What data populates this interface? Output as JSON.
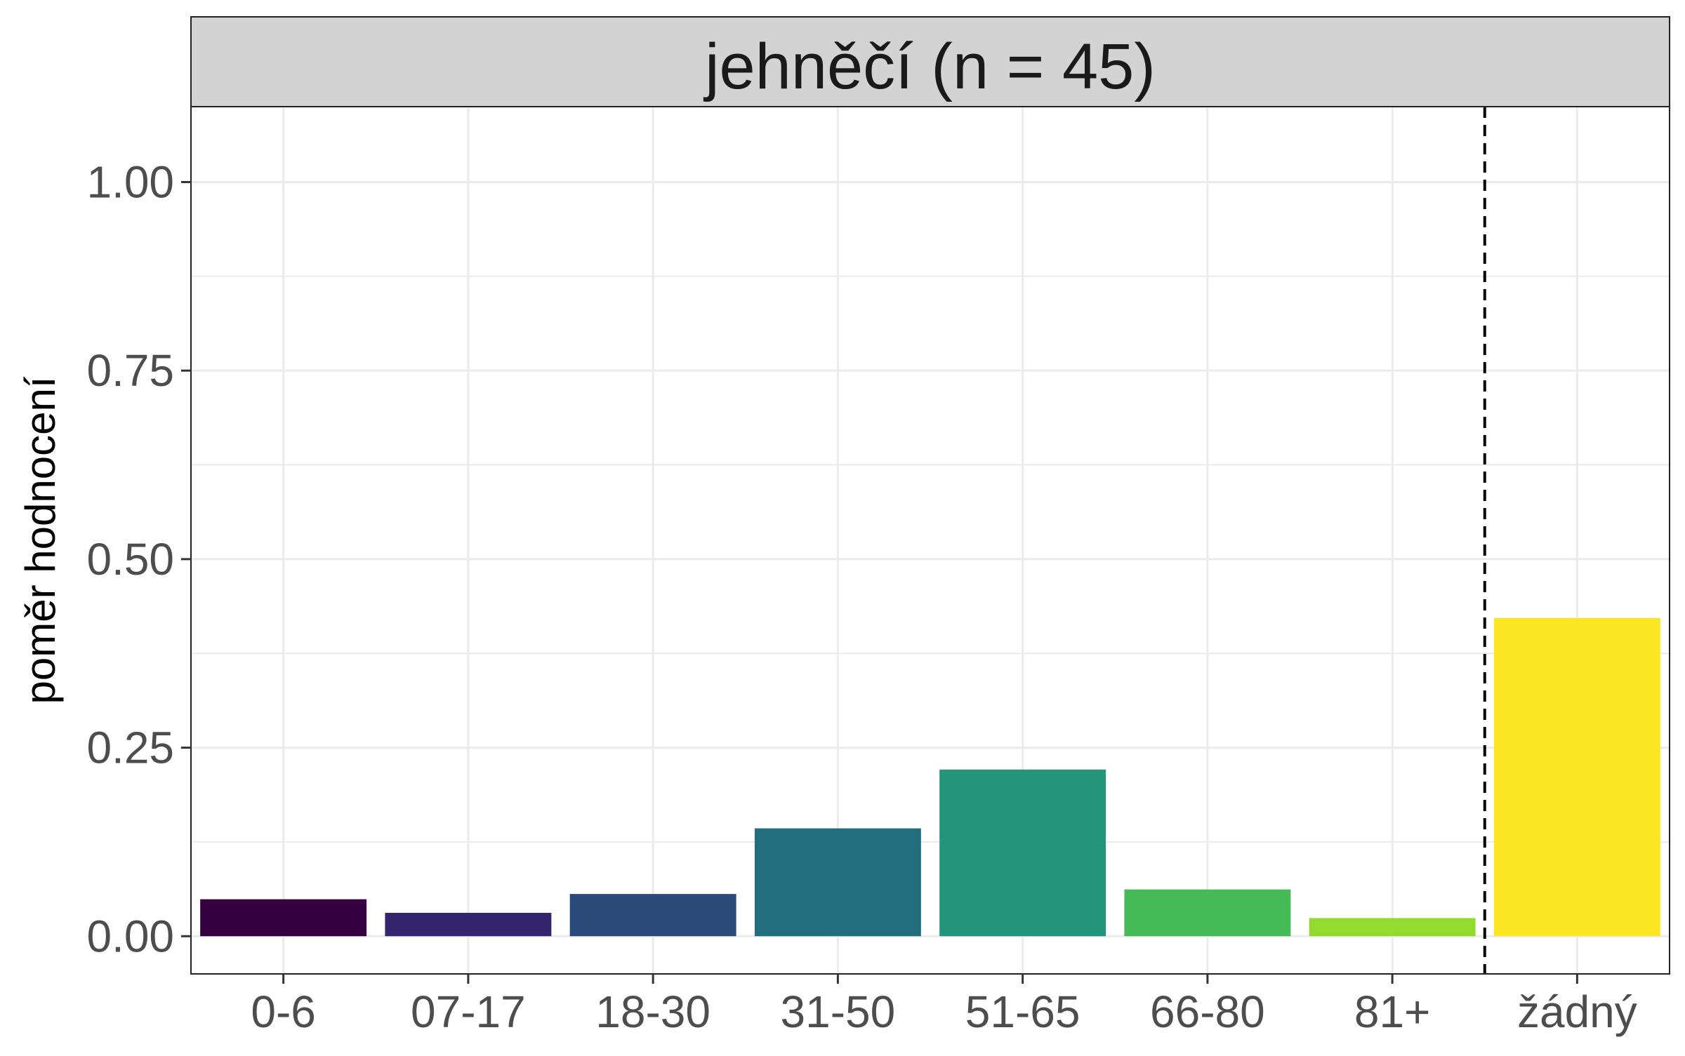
{
  "chart_data": {
    "type": "bar",
    "title": "jehněčí (n = 45)",
    "xlabel": "",
    "ylabel": "poměr hodnocení",
    "categories": [
      "0-6",
      "07-17",
      "18-30",
      "31-50",
      "51-65",
      "66-80",
      "81+",
      "žádný"
    ],
    "values": [
      0.049,
      0.031,
      0.056,
      0.143,
      0.221,
      0.062,
      0.024,
      0.422
    ],
    "bar_colors": [
      "#35003F",
      "#35256E",
      "#2B4A7A",
      "#226E7C",
      "#22957A",
      "#45BB57",
      "#92DA2E",
      "#FCE522"
    ],
    "ylim": [
      -0.05,
      1.1
    ],
    "yticks": [
      0.0,
      0.25,
      0.5,
      0.75,
      1.0
    ],
    "ytick_labels": [
      "0.00",
      "0.25",
      "0.50",
      "0.75",
      "1.00"
    ],
    "grid": true,
    "separator": "dashed vertical line between 81+ and žádný",
    "facet_strip_color": "#D3D3D3"
  }
}
